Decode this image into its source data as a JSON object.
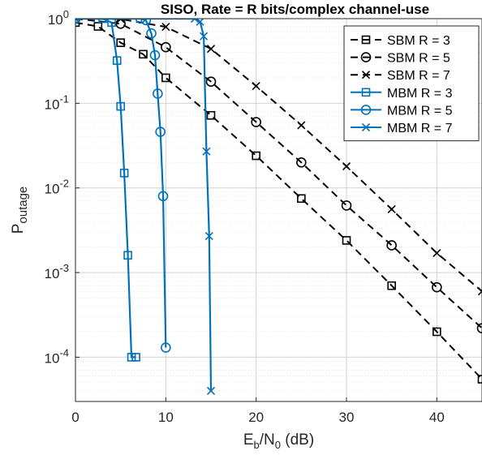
{
  "chart_data": {
    "type": "line",
    "title": "SISO, Rate = R bits/complex channel-use",
    "xlabel": {
      "main": "E",
      "sub1": "b",
      "mid": "/N",
      "sub2": "0",
      "tail": " (dB)"
    },
    "ylabel": {
      "main": "P",
      "sub": "outage"
    },
    "xlim": [
      0,
      45
    ],
    "ylim": [
      3e-05,
      1
    ],
    "yscale": "log",
    "xticks": [
      0,
      10,
      20,
      30,
      40
    ],
    "xtick_labels": [
      "0",
      "10",
      "20",
      "30",
      "40"
    ],
    "yticks": [
      1,
      0.1,
      0.01,
      0.001,
      0.0001
    ],
    "ytick_labels": [
      {
        "base": "10",
        "exp": "0"
      },
      {
        "base": "10",
        "exp": "-1"
      },
      {
        "base": "10",
        "exp": "-2"
      },
      {
        "base": "10",
        "exp": "-3"
      },
      {
        "base": "10",
        "exp": "-4"
      }
    ],
    "grid": true,
    "minor_grid": true,
    "legend_position": "top-right",
    "series": [
      {
        "name": "SBM R = 3",
        "color": "#000000",
        "line": "dashed",
        "marker": "square",
        "x": [
          0,
          2.5,
          5,
          7.5,
          10,
          15,
          20,
          25,
          30,
          35,
          40,
          45
        ],
        "y": [
          0.9,
          0.81,
          0.52,
          0.38,
          0.2,
          0.072,
          0.024,
          0.0075,
          0.0024,
          0.0007,
          0.0002,
          5.5e-05
        ]
      },
      {
        "name": "SBM R = 5",
        "color": "#000000",
        "line": "dashed",
        "marker": "circle",
        "x": [
          0,
          5,
          10,
          15,
          20,
          25,
          30,
          35,
          40,
          45
        ],
        "y": [
          1.0,
          0.87,
          0.46,
          0.18,
          0.06,
          0.02,
          0.0062,
          0.0021,
          0.00067,
          0.00022
        ]
      },
      {
        "name": "SBM R = 7",
        "color": "#000000",
        "line": "dashed",
        "marker": "x",
        "x": [
          0,
          5,
          10,
          15,
          20,
          25,
          30,
          35,
          40,
          45
        ],
        "y": [
          1.0,
          0.99,
          0.8,
          0.44,
          0.16,
          0.055,
          0.018,
          0.0056,
          0.0017,
          0.0006
        ]
      },
      {
        "name": "MBM R = 3",
        "color": "#0072BD",
        "line": "solid",
        "marker": "square",
        "x": [
          0,
          3,
          4,
          4.6,
          5,
          5.4,
          5.8,
          6.2,
          6.7
        ],
        "y": [
          1.0,
          1.0,
          0.9,
          0.32,
          0.092,
          0.015,
          0.0016,
          0.0001,
          0.0001
        ]
      },
      {
        "name": "MBM R = 5",
        "color": "#0072BD",
        "line": "solid",
        "marker": "circle",
        "x": [
          0,
          7.2,
          7.8,
          8.4,
          8.8,
          9.1,
          9.4,
          9.7,
          10.0
        ],
        "y": [
          1.0,
          1.0,
          0.96,
          0.67,
          0.37,
          0.13,
          0.046,
          0.008,
          0.00013
        ]
      },
      {
        "name": "MBM R = 7",
        "color": "#0072BD",
        "line": "solid",
        "marker": "x",
        "x": [
          0,
          13.2,
          13.8,
          14.2,
          14.5,
          14.8,
          15.0
        ],
        "y": [
          1.0,
          1.0,
          0.92,
          0.62,
          0.027,
          0.0027,
          4e-05
        ]
      }
    ]
  }
}
